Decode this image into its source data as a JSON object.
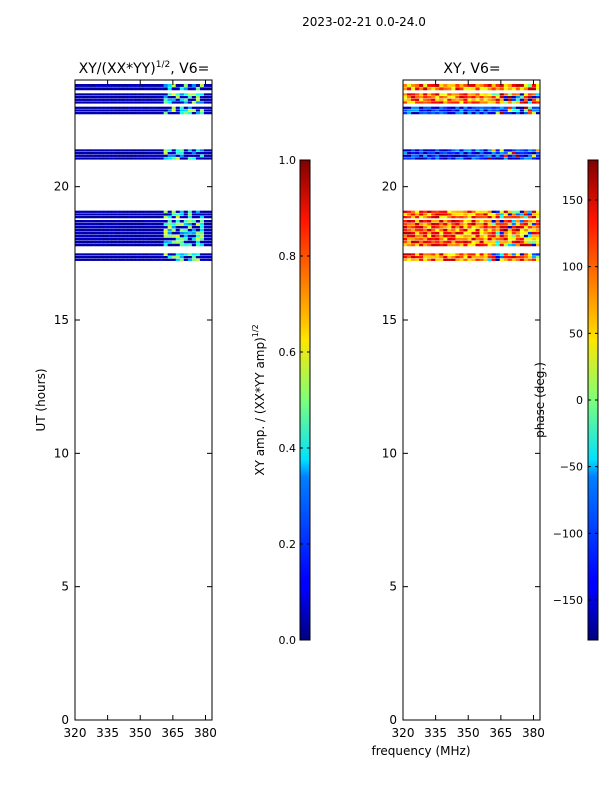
{
  "page": {
    "suptitle": "2023-02-21 0.0-24.0"
  },
  "chart_data": [
    {
      "type": "heatmap",
      "id": "amp",
      "title_main": "XY/(XX*YY)",
      "title_sup": "1/2",
      "title_tail": ", V6=",
      "ylabel": "UT (hours)",
      "xlim": [
        320,
        383
      ],
      "ylim": [
        0,
        24
      ],
      "xticks": [
        320,
        335,
        350,
        365,
        380
      ],
      "yticks": [
        0,
        5,
        10,
        15,
        20
      ],
      "bands": [
        [
          17.2,
          17.5
        ],
        [
          17.75,
          18.75
        ],
        [
          18.8,
          19.1
        ],
        [
          21.0,
          21.4
        ],
        [
          22.7,
          23.0
        ],
        [
          23.1,
          23.5
        ],
        [
          23.6,
          23.85
        ]
      ],
      "colorbar": {
        "label_main": "XY amp. / (XX*YY amp)",
        "label_sup": "1/2",
        "ticks": [
          "0.0",
          "0.2",
          "0.4",
          "0.6",
          "0.8",
          "1.0"
        ],
        "tick_values": [
          0,
          0.2,
          0.4,
          0.6,
          0.8,
          1.0
        ],
        "range": [
          0,
          1
        ],
        "cmap": "jet"
      }
    },
    {
      "type": "heatmap",
      "id": "phase",
      "title_main": "XY, V6=",
      "ylabel": "",
      "xlabel": "frequency (MHz)",
      "xlim": [
        320,
        383
      ],
      "ylim": [
        0,
        24
      ],
      "xticks": [
        320,
        335,
        350,
        365,
        380
      ],
      "yticks": [
        0,
        5,
        10,
        15,
        20
      ],
      "bands": [
        [
          17.2,
          17.5
        ],
        [
          17.75,
          18.75
        ],
        [
          18.8,
          19.1
        ],
        [
          21.0,
          21.4
        ],
        [
          22.7,
          23.0
        ],
        [
          23.1,
          23.5
        ],
        [
          23.6,
          23.85
        ]
      ],
      "colorbar": {
        "label_main": "phase (deg.)",
        "ticks": [
          "−150",
          "−100",
          "−50",
          "0",
          "50",
          "100",
          "150"
        ],
        "tick_values": [
          -150,
          -100,
          -50,
          0,
          50,
          100,
          150
        ],
        "range": [
          -180,
          180
        ],
        "cmap": "jet"
      }
    }
  ]
}
